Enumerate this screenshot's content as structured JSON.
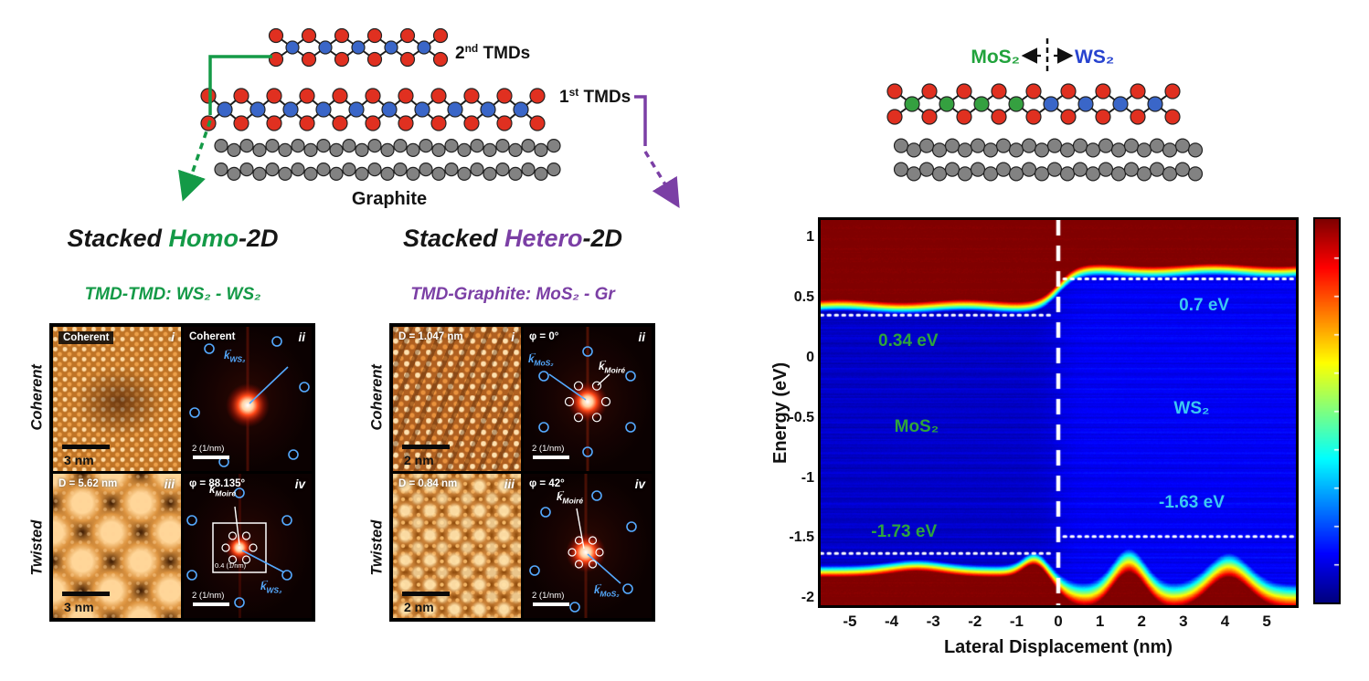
{
  "colors": {
    "homo_accent": "#149a47",
    "hetero_accent": "#7b3fa5",
    "annotation_green": "#2fa43c",
    "annotation_cyan": "#3cc8f2",
    "mos2_label_green": "#21a33c",
    "ws2_label_blue": "#2743cf",
    "atom_sulfur_red": "#e03020",
    "atom_metal_blue": "#3a66c8",
    "atom_metal_green": "#35a040",
    "atom_carbon_gray": "#828282",
    "fft_marker_blue": "#55aaff"
  },
  "glyphs": {
    "k": "k",
    "vec": "→"
  },
  "top_schematic": {
    "tmd2_num": "2",
    "tmd2_sup": "nd",
    "tmd2_rest": " TMDs",
    "tmd1_num": "1",
    "tmd1_sup": "st",
    "tmd1_rest": " TMDs",
    "graphite": "Graphite"
  },
  "homo": {
    "title_pre": "Stacked ",
    "title_accent": "Homo",
    "title_post": "-2D",
    "subtitle": "TMD-TMD: WS₂ - WS₂",
    "row1": "Coherent",
    "row2": "Twisted",
    "p1": {
      "corner": "Coherent",
      "num": "i",
      "scale": "3 nm"
    },
    "p2": {
      "corner": "Coherent",
      "num": "ii",
      "scale": "2 (1/nm)",
      "k1": "WS₂"
    },
    "p3": {
      "corner": "D = 5.62 nm",
      "num": "iii",
      "scale": "3 nm"
    },
    "p4": {
      "corner": "φ = 88.135°",
      "num": "iv",
      "scale": "2 (1/nm)",
      "k1": "Moiré",
      "k2": "WS₂",
      "inset_scale": "0.4 (1/nm)"
    }
  },
  "hetero": {
    "title_pre": "Stacked ",
    "title_accent": "Hetero",
    "title_post": "-2D",
    "subtitle": "TMD-Graphite: MoS₂ - Gr",
    "row1": "Coherent",
    "row2": "Twisted",
    "p1": {
      "corner": "D = 1.047 nm",
      "num": "i",
      "scale": "2 nm"
    },
    "p2": {
      "corner": "φ = 0°",
      "num": "ii",
      "scale": "2 (1/nm)",
      "k1": "MoS₂",
      "k2": "Moiré"
    },
    "p3": {
      "corner": "D = 0.84 nm",
      "num": "iii",
      "scale": "2 nm"
    },
    "p4": {
      "corner": "φ = 42°",
      "num": "iv",
      "scale": "2 (1/nm)",
      "k1": "Moiré",
      "k2": "MoS₂"
    }
  },
  "junction_schematic": {
    "left_material": "MoS₂",
    "right_material": "WS₂"
  },
  "chart_data": {
    "type": "heatmap",
    "xlabel": "Lateral Displacement (nm)",
    "ylabel": "Energy (eV)",
    "xlim": [
      -5.7,
      5.7
    ],
    "ylim": [
      -2.05,
      1.15
    ],
    "xticks": [
      -5,
      -4,
      -3,
      -2,
      -1,
      0,
      1,
      2,
      3,
      4,
      5
    ],
    "yticks": [
      1,
      0.5,
      0,
      -0.5,
      -1,
      -1.5,
      -2
    ],
    "colormap": "jet",
    "colorbar": true,
    "interface_x": 0,
    "regions": [
      {
        "material": "MoS₂",
        "side": "left",
        "conduction_band_ev": 0.34,
        "valence_band_ev": -1.73
      },
      {
        "material": "WS₂",
        "side": "right",
        "conduction_band_ev": 0.7,
        "valence_band_ev": -1.63
      }
    ],
    "band_edge_dotted_lines": [
      {
        "side": "left",
        "energy_ev": 0.36
      },
      {
        "side": "right",
        "energy_ev": 0.66
      },
      {
        "side": "left",
        "energy_ev": -1.62
      },
      {
        "side": "right",
        "energy_ev": -1.48
      }
    ],
    "annotations": [
      {
        "text": "0.34 eV",
        "x_nm": -3.6,
        "energy_ev": 0.14,
        "color": "green"
      },
      {
        "text": "0.7 eV",
        "x_nm": 3.5,
        "energy_ev": 0.44,
        "color": "cyan"
      },
      {
        "text": "MoS₂",
        "x_nm": -3.4,
        "energy_ev": -0.57,
        "color": "green"
      },
      {
        "text": "WS₂",
        "x_nm": 3.2,
        "energy_ev": -0.42,
        "color": "cyan"
      },
      {
        "text": "-1.73 eV",
        "x_nm": -3.7,
        "energy_ev": -1.44,
        "color": "green"
      },
      {
        "text": "-1.63 eV",
        "x_nm": 3.2,
        "energy_ev": -1.2,
        "color": "cyan"
      }
    ]
  }
}
